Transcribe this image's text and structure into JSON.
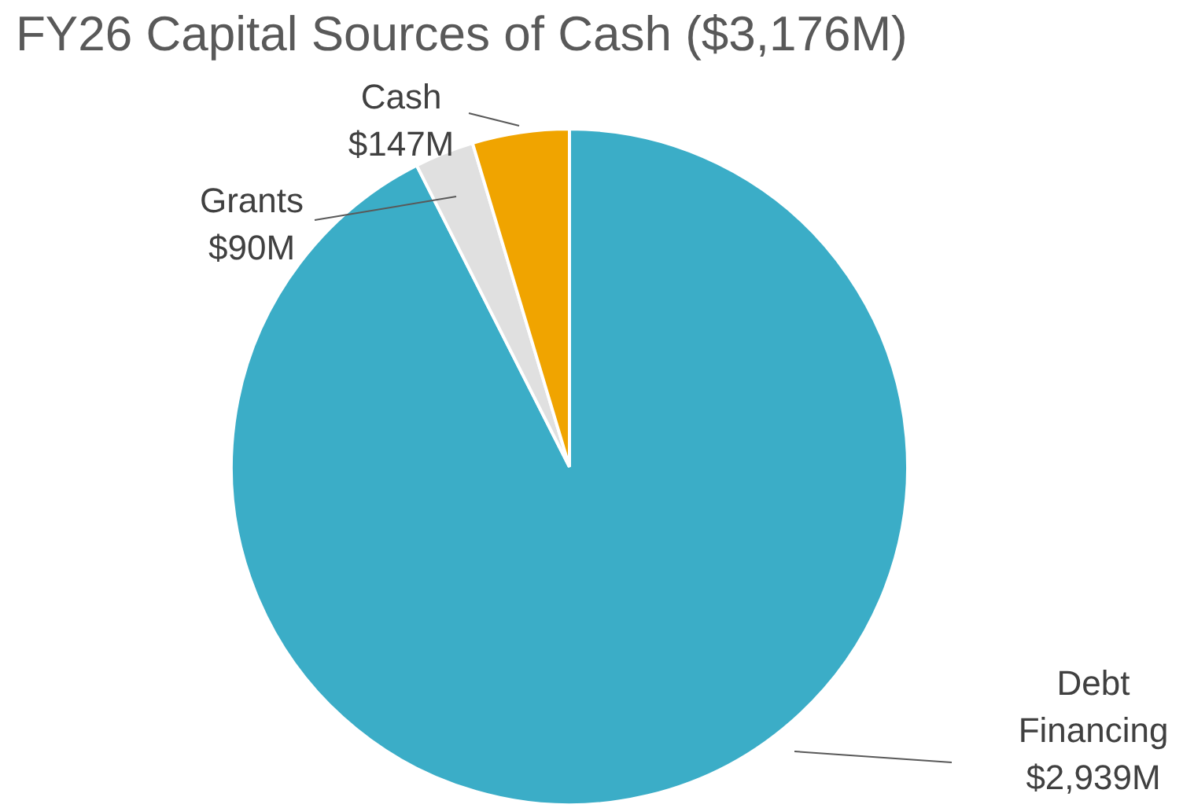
{
  "chart_data": {
    "type": "pie",
    "title": "FY26 Capital Sources of Cash ($3,176M)",
    "categories": [
      "Debt Financing",
      "Grants",
      "Cash"
    ],
    "values": [
      2939,
      90,
      147
    ],
    "colors": [
      "#3badc7",
      "#e0e0e0",
      "#f0a400"
    ],
    "value_labels": [
      "$2,939M",
      "$90M",
      "$147M"
    ]
  }
}
